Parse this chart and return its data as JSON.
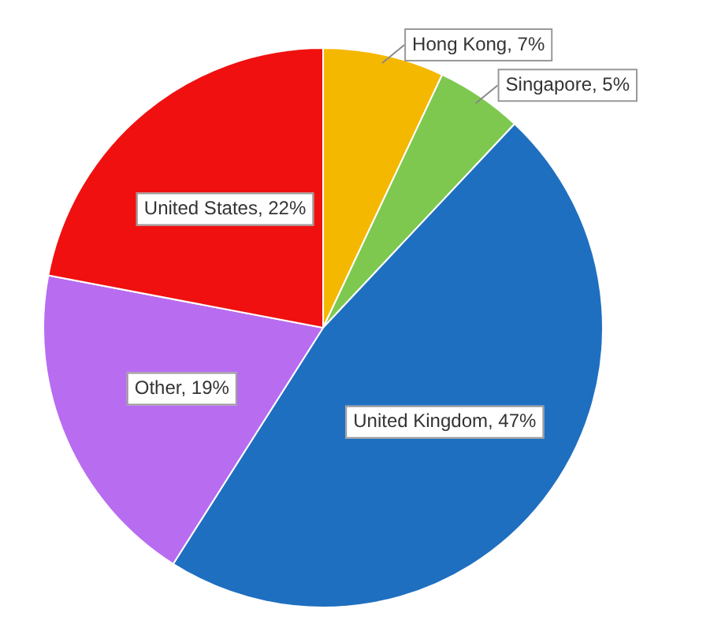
{
  "chart_data": {
    "type": "pie",
    "categories": [
      "Hong Kong",
      "Singapore",
      "United Kingdom",
      "Other",
      "United States"
    ],
    "values": [
      7,
      5,
      47,
      19,
      22
    ],
    "value_labels": [
      "7%",
      "5%",
      "47%",
      "19%",
      "22%"
    ],
    "colors": [
      "#f5b800",
      "#7ec850",
      "#1f6fc0",
      "#b86cf0",
      "#f01010"
    ],
    "legend": false
  }
}
